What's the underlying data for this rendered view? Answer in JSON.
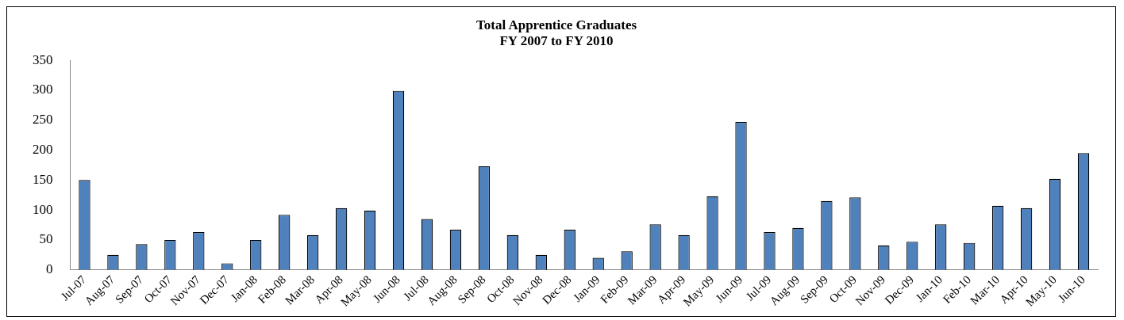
{
  "chart_data": {
    "type": "bar",
    "title": "Total Apprentice Graduates\nFY 2007 to FY 2010",
    "categories": [
      "Jul-07",
      "Aug-07",
      "Sep-07",
      "Oct-07",
      "Nov-07",
      "Dec-07",
      "Jan-08",
      "Feb-08",
      "Mar-08",
      "Apr-08",
      "May-08",
      "Jun-08",
      "Jul-08",
      "Aug-08",
      "Sep-08",
      "Oct-08",
      "Nov-08",
      "Dec-08",
      "Jan-09",
      "Feb-09",
      "Mar-09",
      "Apr-09",
      "May-09",
      "Jun-09",
      "Jul-09",
      "Aug-09",
      "Sep-09",
      "Oct-09",
      "Nov-09",
      "Dec-09",
      "Jan-10",
      "Feb-10",
      "Mar-10",
      "Apr-10",
      "May-10",
      "Jun-10"
    ],
    "values": [
      150,
      25,
      43,
      50,
      63,
      11,
      50,
      92,
      58,
      103,
      99,
      299,
      85,
      67,
      173,
      58,
      25,
      67,
      20,
      31,
      76,
      58,
      123,
      247,
      63,
      70,
      115,
      121,
      41,
      47,
      76,
      45,
      107,
      103,
      152,
      195
    ],
    "color": "#4f81bd",
    "ylim": [
      0,
      350
    ],
    "yticks": [
      0,
      50,
      100,
      150,
      200,
      250,
      300,
      350
    ],
    "grid": false,
    "legend": false
  }
}
